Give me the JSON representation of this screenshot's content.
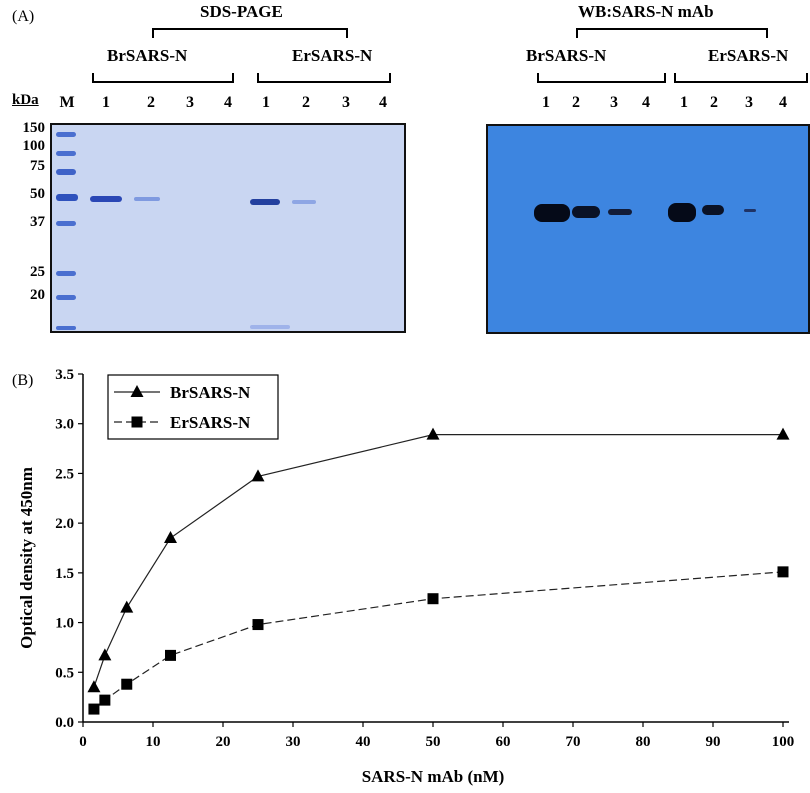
{
  "panel_a": {
    "letter": "(A)",
    "sds_title": "SDS-PAGE",
    "wb_title": "WB:SARS-N mAb",
    "group_br": "BrSARS-N",
    "group_er": "ErSARS-N",
    "kda_label": "kDa",
    "marker_label": "M",
    "lane_numbers": [
      "1",
      "2",
      "3",
      "4"
    ],
    "mw_markers": [
      "150",
      "100",
      "75",
      "50",
      "37",
      "25",
      "20"
    ],
    "gel_color": "#c9d6f2",
    "blot_color": "#3d85e0"
  },
  "panel_b": {
    "letter": "(B)"
  },
  "chart_data": {
    "type": "line",
    "xlabel": "SARS-N mAb (nM)",
    "ylabel": "Optical density at 450nm",
    "xlim": [
      0,
      100
    ],
    "ylim": [
      0,
      3.5
    ],
    "xticks": [
      0,
      10,
      20,
      30,
      40,
      50,
      60,
      70,
      80,
      90,
      100
    ],
    "yticks": [
      0.0,
      0.5,
      1.0,
      1.5,
      2.0,
      2.5,
      3.0,
      3.5
    ],
    "ytick_labels": [
      "0.0",
      "0.5",
      "1.0",
      "1.5",
      "2.0",
      "2.5",
      "3.0",
      "3.5"
    ],
    "grid": false,
    "legend_position": "top-left",
    "series": [
      {
        "name": "BrSARS-N",
        "marker": "triangle",
        "line": "solid",
        "x": [
          1.5625,
          3.125,
          6.25,
          12.5,
          25,
          50,
          100
        ],
        "y": [
          0.35,
          0.67,
          1.15,
          1.85,
          2.47,
          2.89,
          2.89
        ]
      },
      {
        "name": "ErSARS-N",
        "marker": "square",
        "line": "dashed",
        "x": [
          1.5625,
          3.125,
          6.25,
          12.5,
          25,
          50,
          100
        ],
        "y": [
          0.13,
          0.22,
          0.38,
          0.67,
          0.98,
          1.24,
          1.51
        ]
      }
    ]
  }
}
